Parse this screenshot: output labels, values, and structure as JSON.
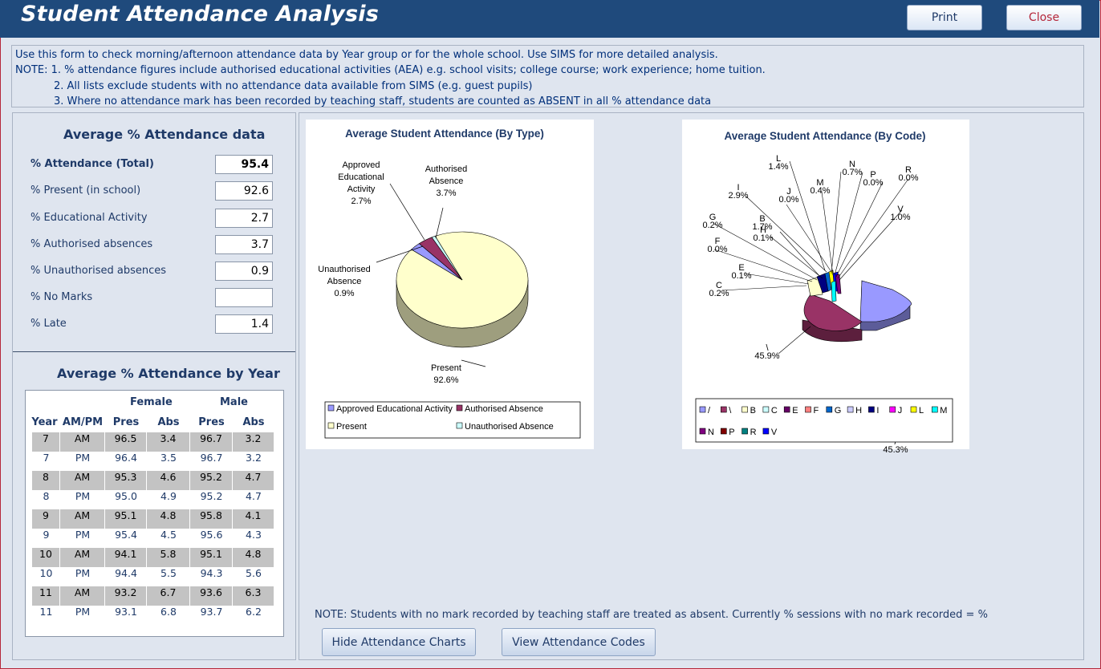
{
  "window": {
    "title": "Student Attendance Analysis"
  },
  "header": {
    "print_label": "Print",
    "close_label": "Close"
  },
  "notes": {
    "line1": "Use this form to check morning/afternoon attendance data by Year group or for the whole school. Use SIMS for more detailed analysis.",
    "line2": "NOTE:  1. % attendance figures include authorised educational activities (AEA) e.g. school visits; college course; work experience; home tuition.",
    "line3": "2. All lists exclude students with no attendance data available from SIMS (e.g. guest pupils)",
    "line4": "3. Where no attendance mark has been recorded by teaching staff, students are counted as ABSENT in all % attendance data"
  },
  "average": {
    "title": "Average % Attendance data",
    "rows": [
      {
        "label": "% Attendance (Total)",
        "value": "95.4"
      },
      {
        "label": "% Present (in school)",
        "value": "92.6"
      },
      {
        "label": "% Educational Activity",
        "value": "2.7"
      },
      {
        "label": "% Authorised absences",
        "value": "3.7"
      },
      {
        "label": "% Unauthorised absences",
        "value": "0.9"
      },
      {
        "label": "% No Marks",
        "value": ""
      },
      {
        "label": "% Late",
        "value": "1.4"
      }
    ]
  },
  "by_year": {
    "title": "Average % Attendance by Year",
    "group_female": "Female",
    "group_male": "Male",
    "columns": [
      "Year",
      "AM/PM",
      "Pres",
      "Abs",
      "Pres",
      "Abs"
    ],
    "rows": [
      [
        "7",
        "AM",
        "96.5",
        "3.4",
        "96.7",
        "3.2"
      ],
      [
        "7",
        "PM",
        "96.4",
        "3.5",
        "96.7",
        "3.2"
      ],
      [
        "8",
        "AM",
        "95.3",
        "4.6",
        "95.2",
        "4.7"
      ],
      [
        "8",
        "PM",
        "95.0",
        "4.9",
        "95.2",
        "4.7"
      ],
      [
        "9",
        "AM",
        "95.1",
        "4.8",
        "95.8",
        "4.1"
      ],
      [
        "9",
        "PM",
        "95.4",
        "4.5",
        "95.6",
        "4.3"
      ],
      [
        "10",
        "AM",
        "94.1",
        "5.8",
        "95.1",
        "4.8"
      ],
      [
        "10",
        "PM",
        "94.4",
        "5.5",
        "94.3",
        "5.6"
      ],
      [
        "11",
        "AM",
        "93.2",
        "6.7",
        "93.6",
        "6.3"
      ],
      [
        "11",
        "PM",
        "93.1",
        "6.8",
        "93.7",
        "6.2"
      ]
    ]
  },
  "chart_data": [
    {
      "type": "pie",
      "title": "Average Student Attendance (By Type)",
      "categories": [
        "Present",
        "Approved Educational Activity",
        "Authorised Absence",
        "Unauthorised Absence"
      ],
      "values": [
        92.6,
        2.7,
        3.7,
        0.9
      ],
      "slice_labels": [
        [
          "Present",
          "92.6%"
        ],
        [
          "Approved",
          "Educational",
          "Activity",
          "2.7%"
        ],
        [
          "Authorised",
          "Absence",
          "3.7%"
        ],
        [
          "Unauthorised",
          "Absence",
          "0.9%"
        ]
      ],
      "colors": [
        "#ffffcc",
        "#9999ff",
        "#993366",
        "#ccffff"
      ],
      "legend": [
        "Approved Educational Activity",
        "Authorised Absence",
        "Present",
        "Unauthorised Absence"
      ],
      "legend_position": "bottom"
    },
    {
      "type": "pie",
      "title": "Average Student Attendance (By Code)",
      "categories": [
        "/",
        "\\",
        "B",
        "C",
        "E",
        "F",
        "G",
        "H",
        "I",
        "J",
        "L",
        "M",
        "N",
        "P",
        "R",
        "V"
      ],
      "values": [
        45.3,
        45.9,
        1.7,
        0.2,
        0.1,
        0.0,
        0.2,
        0.1,
        2.9,
        0.0,
        1.4,
        0.4,
        0.7,
        0.0,
        0.0,
        1.0
      ],
      "slice_labels": [
        [
          "/",
          "45.3%"
        ],
        [
          "\\",
          "45.9%"
        ],
        [
          "B",
          "1.7%"
        ],
        [
          "C",
          "0.2%"
        ],
        [
          "E",
          "0.1%"
        ],
        [
          "F",
          "0.0%"
        ],
        [
          "G",
          "0.2%"
        ],
        [
          "H",
          "0.1%"
        ],
        [
          "I",
          "2.9%"
        ],
        [
          "J",
          "0.0%"
        ],
        [
          "L",
          "1.4%"
        ],
        [
          "M",
          "0.4%"
        ],
        [
          "N",
          "0.7%"
        ],
        [
          "P",
          "0.0%"
        ],
        [
          "R",
          "0.0%"
        ],
        [
          "V",
          "1.0%"
        ]
      ],
      "colors": [
        "#9999ff",
        "#993366",
        "#ffffcc",
        "#ccffff",
        "#660066",
        "#ff8080",
        "#0066cc",
        "#ccccff",
        "#000080",
        "#ff00ff",
        "#ffff00",
        "#00ffff",
        "#800080",
        "#800000",
        "#008080",
        "#0000ff"
      ],
      "legend": [
        "/",
        "\\",
        "B",
        "C",
        "E",
        "F",
        "G",
        "H",
        "I",
        "J",
        "L",
        "M",
        "N",
        "P",
        "R",
        "V"
      ],
      "legend_position": "bottom"
    }
  ],
  "footer": {
    "note": "NOTE: Students with no mark recorded by teaching staff are treated as absent. Currently % sessions with no mark recorded =  %",
    "hide_charts_label": "Hide Attendance Charts",
    "view_codes_label": "View Attendance Codes"
  }
}
